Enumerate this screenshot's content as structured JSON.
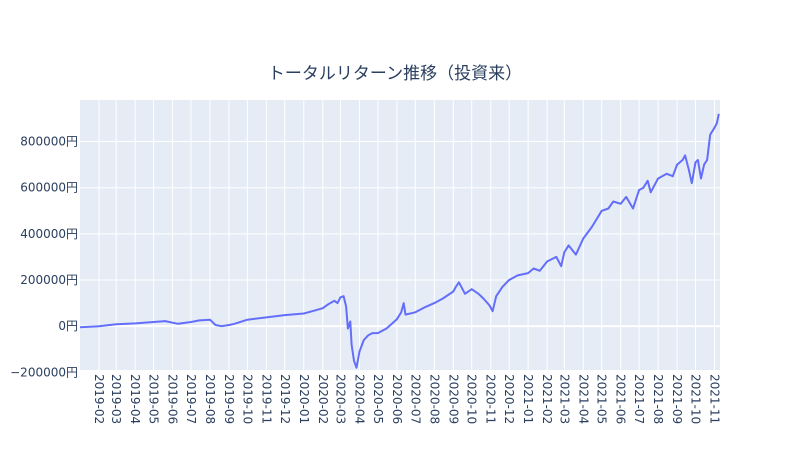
{
  "chart_data": {
    "type": "line",
    "title": "トータルリターン推移（投資来）",
    "xlabel": "",
    "ylabel": "",
    "y_tick_labels": [
      "−200000円",
      "0円",
      "200000円",
      "400000円",
      "600000円",
      "800000円"
    ],
    "x_tick_labels": [
      "2019-02",
      "2019-03",
      "2019-04",
      "2019-05",
      "2019-06",
      "2019-07",
      "2019-08",
      "2019-09",
      "2019-10",
      "2019-11",
      "2019-12",
      "2020-01",
      "2020-02",
      "2020-03",
      "2020-04",
      "2020-05",
      "2020-06",
      "2020-07",
      "2020-08",
      "2020-09",
      "2020-10",
      "2020-11",
      "2020-12",
      "2021-01",
      "2021-02",
      "2021-03",
      "2021-04",
      "2021-05",
      "2021-06",
      "2021-07",
      "2021-08",
      "2021-09",
      "2021-10",
      "2021-11"
    ],
    "ylim": [
      -190000,
      980000
    ],
    "xlim": [
      "2019-01-01",
      "2021-11-10"
    ],
    "grid": true,
    "series": [
      {
        "color": "#636efa",
        "x": [
          "2019-01-01",
          "2019-02-01",
          "2019-03-01",
          "2019-04-01",
          "2019-05-01",
          "2019-05-20",
          "2019-06-01",
          "2019-06-10",
          "2019-07-01",
          "2019-07-15",
          "2019-08-01",
          "2019-08-10",
          "2019-08-20",
          "2019-09-01",
          "2019-09-10",
          "2019-10-01",
          "2019-11-01",
          "2019-12-01",
          "2020-01-01",
          "2020-01-15",
          "2020-02-01",
          "2020-02-10",
          "2020-02-20",
          "2020-02-25",
          "2020-03-01",
          "2020-03-06",
          "2020-03-10",
          "2020-03-13",
          "2020-03-17",
          "2020-03-19",
          "2020-03-23",
          "2020-03-27",
          "2020-04-01",
          "2020-04-08",
          "2020-04-15",
          "2020-04-22",
          "2020-05-01",
          "2020-05-15",
          "2020-06-01",
          "2020-06-08",
          "2020-06-12",
          "2020-06-15",
          "2020-07-01",
          "2020-07-15",
          "2020-08-01",
          "2020-08-15",
          "2020-09-01",
          "2020-09-05",
          "2020-09-10",
          "2020-09-20",
          "2020-10-01",
          "2020-10-12",
          "2020-10-20",
          "2020-10-30",
          "2020-11-04",
          "2020-11-10",
          "2020-11-20",
          "2020-12-01",
          "2020-12-15",
          "2021-01-01",
          "2021-01-10",
          "2021-01-20",
          "2021-02-01",
          "2021-02-16",
          "2021-02-24",
          "2021-03-01",
          "2021-03-08",
          "2021-03-20",
          "2021-04-01",
          "2021-04-15",
          "2021-05-01",
          "2021-05-12",
          "2021-05-20",
          "2021-06-01",
          "2021-06-10",
          "2021-06-21",
          "2021-07-01",
          "2021-07-08",
          "2021-07-15",
          "2021-07-20",
          "2021-08-01",
          "2021-08-15",
          "2021-08-25",
          "2021-09-01",
          "2021-09-10",
          "2021-09-14",
          "2021-09-20",
          "2021-09-25",
          "2021-10-01",
          "2021-10-05",
          "2021-10-10",
          "2021-10-15",
          "2021-10-20",
          "2021-10-25",
          "2021-11-01",
          "2021-11-05",
          "2021-11-08"
        ],
        "y": [
          -5000,
          0,
          8000,
          12000,
          18000,
          22000,
          15000,
          10000,
          18000,
          25000,
          28000,
          5000,
          0,
          5000,
          10000,
          28000,
          38000,
          48000,
          55000,
          65000,
          78000,
          95000,
          110000,
          100000,
          125000,
          130000,
          85000,
          -10000,
          20000,
          -80000,
          -150000,
          -180000,
          -110000,
          -60000,
          -40000,
          -30000,
          -30000,
          -10000,
          30000,
          60000,
          100000,
          50000,
          60000,
          80000,
          100000,
          120000,
          150000,
          170000,
          190000,
          140000,
          160000,
          140000,
          120000,
          90000,
          65000,
          130000,
          170000,
          200000,
          220000,
          230000,
          250000,
          240000,
          280000,
          300000,
          260000,
          320000,
          350000,
          310000,
          380000,
          430000,
          500000,
          510000,
          540000,
          530000,
          560000,
          510000,
          590000,
          600000,
          630000,
          580000,
          640000,
          660000,
          650000,
          700000,
          720000,
          740000,
          680000,
          620000,
          710000,
          720000,
          640000,
          700000,
          720000,
          830000,
          860000,
          880000,
          920000
        ]
      }
    ]
  }
}
